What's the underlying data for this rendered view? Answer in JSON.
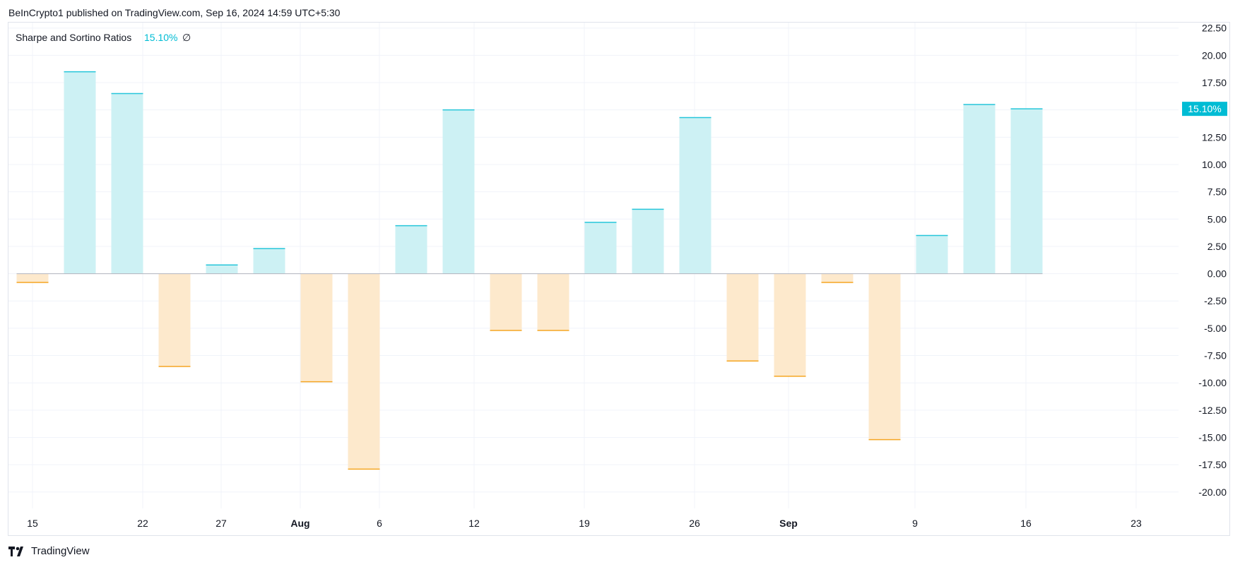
{
  "header": {
    "publisher": "BeInCrypto1 published on TradingView.com, Sep 16, 2024 14:59 UTC+5:30"
  },
  "footer": {
    "brand": "TradingView"
  },
  "colors": {
    "positive_fill": "#cdf1f4",
    "positive_line": "#26c6da",
    "negative_fill": "#fde9cc",
    "negative_line": "#f5a623",
    "zero_line": "#b2b5be",
    "grid": "#f0f3fa",
    "badge": "#00bcd4"
  },
  "chart_data": {
    "type": "bar",
    "indicator": {
      "name": "Sharpe and Sortino Ratios",
      "value": "15.10%",
      "symbol": "∅"
    },
    "last_value_badge": "15.10%",
    "x_ticks": [
      {
        "label": "15",
        "bold": false
      },
      {
        "label": "22",
        "bold": false
      },
      {
        "label": "27",
        "bold": false
      },
      {
        "label": "Aug",
        "bold": true
      },
      {
        "label": "6",
        "bold": false
      },
      {
        "label": "12",
        "bold": false
      },
      {
        "label": "19",
        "bold": false
      },
      {
        "label": "26",
        "bold": false
      },
      {
        "label": "Sep",
        "bold": true
      },
      {
        "label": "9",
        "bold": false
      },
      {
        "label": "16",
        "bold": false
      },
      {
        "label": "23",
        "bold": false
      }
    ],
    "y_ticks": [
      "22.50",
      "20.00",
      "17.50",
      "15.00",
      "12.50",
      "10.00",
      "7.50",
      "5.00",
      "2.50",
      "0.00",
      "-2.50",
      "-5.00",
      "-7.50",
      "-10.00",
      "-12.50",
      "-15.00",
      "-17.50",
      "-20.00"
    ],
    "ylim": [
      -21.5,
      23
    ],
    "values": [
      -0.8,
      18.5,
      16.5,
      -8.5,
      0.8,
      2.3,
      -9.9,
      -17.9,
      4.4,
      15.0,
      -5.2,
      -5.2,
      4.7,
      5.9,
      14.3,
      -8.0,
      -9.4,
      -0.8,
      -15.2,
      3.5,
      15.5,
      15.1
    ]
  }
}
